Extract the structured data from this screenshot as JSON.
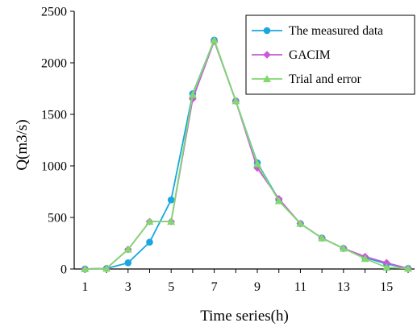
{
  "chart_data": {
    "type": "line",
    "title": "",
    "xlabel": "Time series(h)",
    "ylabel": "Q(m3/s)",
    "xlim": [
      0.5,
      16.3
    ],
    "ylim": [
      0,
      2500
    ],
    "x": [
      1,
      2,
      3,
      4,
      5,
      6,
      7,
      8,
      9,
      10,
      11,
      12,
      13,
      14,
      15,
      16
    ],
    "x_ticks": [
      1,
      3,
      5,
      7,
      9,
      11,
      13,
      15
    ],
    "y_ticks": [
      0,
      500,
      1000,
      1500,
      2000,
      2500
    ],
    "legend_position": "top-right",
    "series": [
      {
        "name": "The measured data",
        "color": "#1aa6e0",
        "marker": "circle",
        "values": [
          0,
          5,
          60,
          260,
          670,
          1700,
          2220,
          1630,
          1030,
          670,
          440,
          300,
          200,
          110,
          50,
          5
        ]
      },
      {
        "name": "GACIM",
        "color": "#c85ad6",
        "marker": "diamond",
        "values": [
          0,
          5,
          190,
          460,
          460,
          1650,
          2210,
          1630,
          980,
          680,
          440,
          300,
          200,
          120,
          60,
          5
        ]
      },
      {
        "name": "Trial and error",
        "color": "#80d86f",
        "marker": "triangle",
        "values": [
          0,
          5,
          190,
          460,
          460,
          1690,
          2220,
          1630,
          1020,
          660,
          440,
          300,
          200,
          100,
          15,
          5
        ]
      }
    ]
  }
}
